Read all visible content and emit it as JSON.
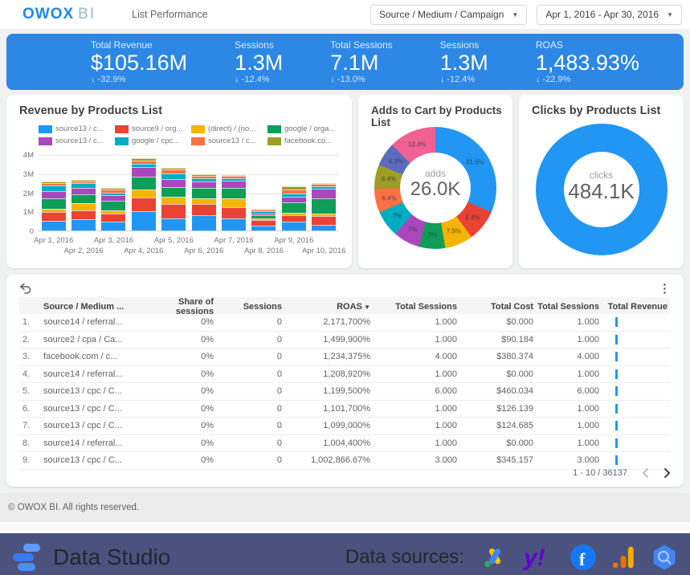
{
  "header": {
    "logo_owox": "OWOX",
    "logo_bi": "BI",
    "title": "List Performance",
    "filters": [
      {
        "label": "Source / Medium / Campaign"
      },
      {
        "label": "Apr 1, 2016 - Apr 30, 2016"
      }
    ]
  },
  "kpis": {
    "accent": "#2D87E4",
    "items": [
      {
        "label": "Total Revenue",
        "value": "$105.16M",
        "delta": "-32.9%"
      },
      {
        "label": "Sessions",
        "value": "1.3M",
        "delta": "-12.4%"
      },
      {
        "label": "Total Sessions",
        "value": "7.1M",
        "delta": "-13.0%"
      },
      {
        "label": "Sessions",
        "value": "1.3M",
        "delta": "-12.4%"
      },
      {
        "label": "ROAS",
        "value": "1,483.93%",
        "delta": "-22.9%"
      }
    ]
  },
  "revenue_card": {
    "title": "Revenue by Products List"
  },
  "adds_card": {
    "title": "Adds to Cart by Products List",
    "center_label": "adds",
    "center_value": "26.0K",
    "center_sub": "-"
  },
  "clicks_card": {
    "title": "Clicks by Products List",
    "center_label": "clicks",
    "center_value": "484.1K",
    "center_sub": "-"
  },
  "chart_data": [
    {
      "type": "bar",
      "stacked": true,
      "title": "Revenue by Products List",
      "xlabel": "",
      "ylabel": "",
      "units": "millions",
      "ylim": [
        0,
        4
      ],
      "yticks": [
        "0",
        "1M",
        "2M",
        "3M",
        "4M"
      ],
      "grid": true,
      "legend_position": "top",
      "categories": [
        "Apr 1, 2016",
        "Apr 2, 2016",
        "Apr 3, 2016",
        "Apr 4, 2016",
        "Apr 5, 2016",
        "Apr 6, 2016",
        "Apr 7, 2016",
        "Apr 8, 2016",
        "Apr 9, 2016",
        "Apr 10, 2016"
      ],
      "series": [
        {
          "name": "source13 / c...",
          "color": "#2196F3",
          "values": [
            0.5,
            0.57,
            0.45,
            1.02,
            0.65,
            0.78,
            0.63,
            0.25,
            0.45,
            0.3
          ]
        },
        {
          "name": "source9 / org...",
          "color": "#EA4335",
          "values": [
            0.45,
            0.5,
            0.45,
            0.72,
            0.72,
            0.62,
            0.6,
            0.28,
            0.33,
            0.45
          ]
        },
        {
          "name": "(direct) / (no...",
          "color": "#F4B400",
          "values": [
            0.2,
            0.35,
            0.17,
            0.4,
            0.38,
            0.3,
            0.45,
            0.1,
            0.13,
            0.15
          ]
        },
        {
          "name": "google / orga...",
          "color": "#0F9D58",
          "values": [
            0.55,
            0.48,
            0.48,
            0.7,
            0.52,
            0.52,
            0.55,
            0.15,
            0.55,
            0.8
          ]
        },
        {
          "name": "source13 / c...",
          "color": "#AB47BC",
          "values": [
            0.35,
            0.33,
            0.3,
            0.5,
            0.42,
            0.35,
            0.37,
            0.1,
            0.33,
            0.5
          ]
        },
        {
          "name": "google / cpc...",
          "color": "#00ACC1",
          "values": [
            0.3,
            0.25,
            0.15,
            0.15,
            0.3,
            0.18,
            0.15,
            0.15,
            0.15,
            0.13
          ]
        },
        {
          "name": "source13 / c...",
          "color": "#FF7043",
          "values": [
            0.12,
            0.1,
            0.15,
            0.18,
            0.2,
            0.13,
            0.1,
            0.07,
            0.2,
            0.1
          ]
        },
        {
          "name": "facebook.co...",
          "color": "#9E9D24",
          "values": [
            0.08,
            0.07,
            0.1,
            0.13,
            0.11,
            0.07,
            0.07,
            0.05,
            0.16,
            0.07
          ]
        }
      ]
    },
    {
      "type": "pie",
      "title": "Adds to Cart by Products List",
      "center_label": "adds",
      "center_value": "26.0K",
      "slices": [
        {
          "pct": 31.5,
          "display": "31.5%",
          "color": "#2196F3"
        },
        {
          "pct": 8.4,
          "display": "8.4%",
          "color": "#EA4335"
        },
        {
          "pct": 7.5,
          "display": "7.5%",
          "color": "#F4B400"
        },
        {
          "pct": 7.0,
          "display": "7%",
          "color": "#0F9D58"
        },
        {
          "pct": 7.0,
          "display": "7%",
          "color": "#AB47BC"
        },
        {
          "pct": 7.0,
          "display": "7%",
          "color": "#00ACC1"
        },
        {
          "pct": 6.4,
          "display": "6.4%",
          "color": "#FF7043"
        },
        {
          "pct": 6.4,
          "display": "6.4%",
          "color": "#9E9D24"
        },
        {
          "pct": 6.3,
          "display": "6.3%",
          "color": "#5C6BC0"
        },
        {
          "pct": 12.4,
          "display": "12.4%",
          "color": "#F06292"
        }
      ]
    },
    {
      "type": "pie",
      "title": "Clicks by Products List",
      "center_label": "clicks",
      "center_value": "484.1K",
      "slices": [
        {
          "pct": 100,
          "display": "",
          "color": "#2196F3"
        }
      ]
    }
  ],
  "table": {
    "columns": [
      {
        "label": "",
        "align": "left"
      },
      {
        "label": "Source / Medium ...",
        "align": "left"
      },
      {
        "label": "Share of sessions",
        "align": "right"
      },
      {
        "label": "Sessions",
        "align": "right"
      },
      {
        "label": "ROAS",
        "align": "right",
        "sorted": true
      },
      {
        "label": "Total Sessions",
        "align": "right"
      },
      {
        "label": "Total Cost",
        "align": "right"
      },
      {
        "label": "Total Sessions",
        "align": "right"
      },
      {
        "label": "Total Revenue",
        "align": "right"
      }
    ],
    "rows": [
      {
        "n": "1.",
        "source": "source14 / referral...",
        "share": "0%",
        "sessions": "0",
        "roas": "2,171,700%",
        "total_sessions": "1.000",
        "total_cost": "$0.000",
        "total_sessions2": "1.000"
      },
      {
        "n": "2.",
        "source": "source2 / cpa / Ca...",
        "share": "0%",
        "sessions": "0",
        "roas": "1,499,900%",
        "total_sessions": "1.000",
        "total_cost": "$90.184",
        "total_sessions2": "1.000"
      },
      {
        "n": "3.",
        "source": "facebook.com / c...",
        "share": "0%",
        "sessions": "0",
        "roas": "1,234,375%",
        "total_sessions": "4.000",
        "total_cost": "$380.374",
        "total_sessions2": "4.000"
      },
      {
        "n": "4.",
        "source": "source14 / referral...",
        "share": "0%",
        "sessions": "0",
        "roas": "1,208,920%",
        "total_sessions": "1.000",
        "total_cost": "$0.000",
        "total_sessions2": "1.000"
      },
      {
        "n": "5.",
        "source": "source13 / cpc / C...",
        "share": "0%",
        "sessions": "0",
        "roas": "1,199,500%",
        "total_sessions": "6.000",
        "total_cost": "$460.034",
        "total_sessions2": "6.000"
      },
      {
        "n": "6.",
        "source": "source13 / cpc / C...",
        "share": "0%",
        "sessions": "0",
        "roas": "1,101,700%",
        "total_sessions": "1.000",
        "total_cost": "$126.139",
        "total_sessions2": "1.000"
      },
      {
        "n": "7.",
        "source": "source13 / cpc / C...",
        "share": "0%",
        "sessions": "0",
        "roas": "1,099,000%",
        "total_sessions": "1.000",
        "total_cost": "$124.685",
        "total_sessions2": "1.000"
      },
      {
        "n": "8.",
        "source": "source14 / referral...",
        "share": "0%",
        "sessions": "0",
        "roas": "1,004,400%",
        "total_sessions": "1.000",
        "total_cost": "$0.000",
        "total_sessions2": "1.000"
      },
      {
        "n": "9.",
        "source": "source13 / cpc / C...",
        "share": "0%",
        "sessions": "0",
        "roas": "1,002,866.67%",
        "total_sessions": "3.000",
        "total_cost": "$345.157",
        "total_sessions2": "3.000"
      }
    ],
    "pagination": "1 - 10 / 36137"
  },
  "footer": {
    "copyright": "© OWOX BI. All rights reserved."
  },
  "bottom_bar": {
    "background": "#4A527D",
    "brand": "Data Studio",
    "sources_label": "Data sources:",
    "yahoo_glyph": "y!",
    "icons": [
      "google-ads",
      "yahoo",
      "facebook",
      "google-analytics",
      "bigquery"
    ]
  }
}
